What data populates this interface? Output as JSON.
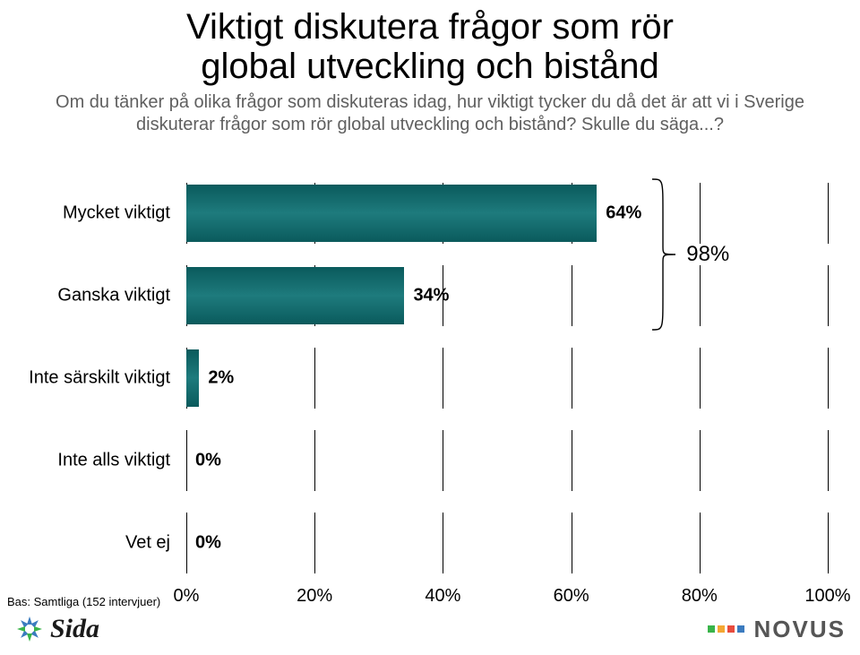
{
  "title": {
    "line1": "Viktigt diskutera frågor som rör",
    "line2": "global utveckling och bistånd",
    "fontsize": 40,
    "color": "#000000"
  },
  "subtitle": {
    "line1": "Om du tänker på olika frågor som diskuteras idag, hur viktigt tycker du då det är att vi i Sverige",
    "line2": "diskuterar frågor som rör global utveckling och bistånd? Skulle du säga...?",
    "fontsize": 20,
    "color": "#5f5f5f"
  },
  "chart": {
    "type": "bar",
    "orientation": "horizontal",
    "xlim": [
      0,
      100
    ],
    "xtick_step": 20,
    "xticks": [
      "0%",
      "20%",
      "40%",
      "60%",
      "80%",
      "100%"
    ],
    "bar_color": "#1e7b7d",
    "bar_gradient_top": "#0a5a5c",
    "bar_gradient_mid": "#1e7b7d",
    "background_color": "#ffffff",
    "value_label_fontsize": 20,
    "category_fontsize": 20,
    "categories": [
      {
        "label": "Mycket viktigt",
        "value": 64,
        "display": "64%"
      },
      {
        "label": "Ganska viktigt",
        "value": 34,
        "display": "34%"
      },
      {
        "label": "Inte särskilt viktigt",
        "value": 2,
        "display": "2%"
      },
      {
        "label": "Inte alls viktigt",
        "value": 0,
        "display": "0%"
      },
      {
        "label": "Vet ej",
        "value": 0,
        "display": "0%"
      }
    ],
    "bracket": {
      "covers": [
        0,
        1
      ],
      "sum_display": "98%",
      "sum_fontsize": 24,
      "color": "#000000"
    }
  },
  "footer_note": "Bas: Samtliga (152 intervjuer)",
  "logos": {
    "left_name": "Sida",
    "right_name": "NOVUS",
    "novus_colors": [
      "#39b44a",
      "#f4a733",
      "#e84c3d",
      "#3b7bbf"
    ]
  }
}
